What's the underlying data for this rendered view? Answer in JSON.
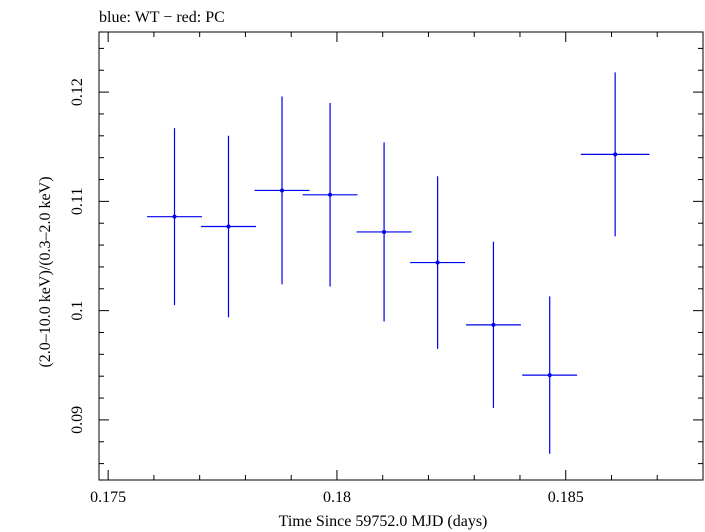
{
  "chart_data": {
    "type": "scatter",
    "title": "blue: WT − red: PC",
    "xlabel": "Time Since 59752.0 MJD (days)",
    "ylabel": "(2.0–10.0 keV)/(0.3–2.0 keV)",
    "xlim": [
      0.1748,
      0.188
    ],
    "ylim": [
      0.0845,
      0.1255
    ],
    "x_ticks": [
      {
        "value": 0.175,
        "label": "0.175"
      },
      {
        "value": 0.18,
        "label": "0.18"
      },
      {
        "value": 0.185,
        "label": "0.185"
      }
    ],
    "y_ticks": [
      {
        "value": 0.09,
        "label": "0.09"
      },
      {
        "value": 0.1,
        "label": "0.1"
      },
      {
        "value": 0.11,
        "label": "0.11"
      },
      {
        "value": 0.12,
        "label": "0.12"
      }
    ],
    "grid": false,
    "series": [
      {
        "name": "WT",
        "color": "#0000ee",
        "points": [
          {
            "x": 0.17645,
            "xerr": 0.0006,
            "y": 0.1086,
            "yerr": 0.0081
          },
          {
            "x": 0.17763,
            "xerr": 0.0006,
            "y": 0.1077,
            "yerr": 0.0083
          },
          {
            "x": 0.1788,
            "xerr": 0.0006,
            "y": 0.111,
            "yerr": 0.0086
          },
          {
            "x": 0.17985,
            "xerr": 0.0006,
            "y": 0.1106,
            "yerr": 0.0084
          },
          {
            "x": 0.18103,
            "xerr": 0.0006,
            "y": 0.1072,
            "yerr": 0.0082
          },
          {
            "x": 0.1822,
            "xerr": 0.0006,
            "y": 0.1044,
            "yerr": 0.0079
          },
          {
            "x": 0.18342,
            "xerr": 0.0006,
            "y": 0.0987,
            "yerr": 0.0076
          },
          {
            "x": 0.18465,
            "xerr": 0.0006,
            "y": 0.0941,
            "yerr": 0.0072
          },
          {
            "x": 0.18608,
            "xerr": 0.00075,
            "y": 0.1143,
            "yerr": 0.0075
          }
        ]
      }
    ]
  }
}
